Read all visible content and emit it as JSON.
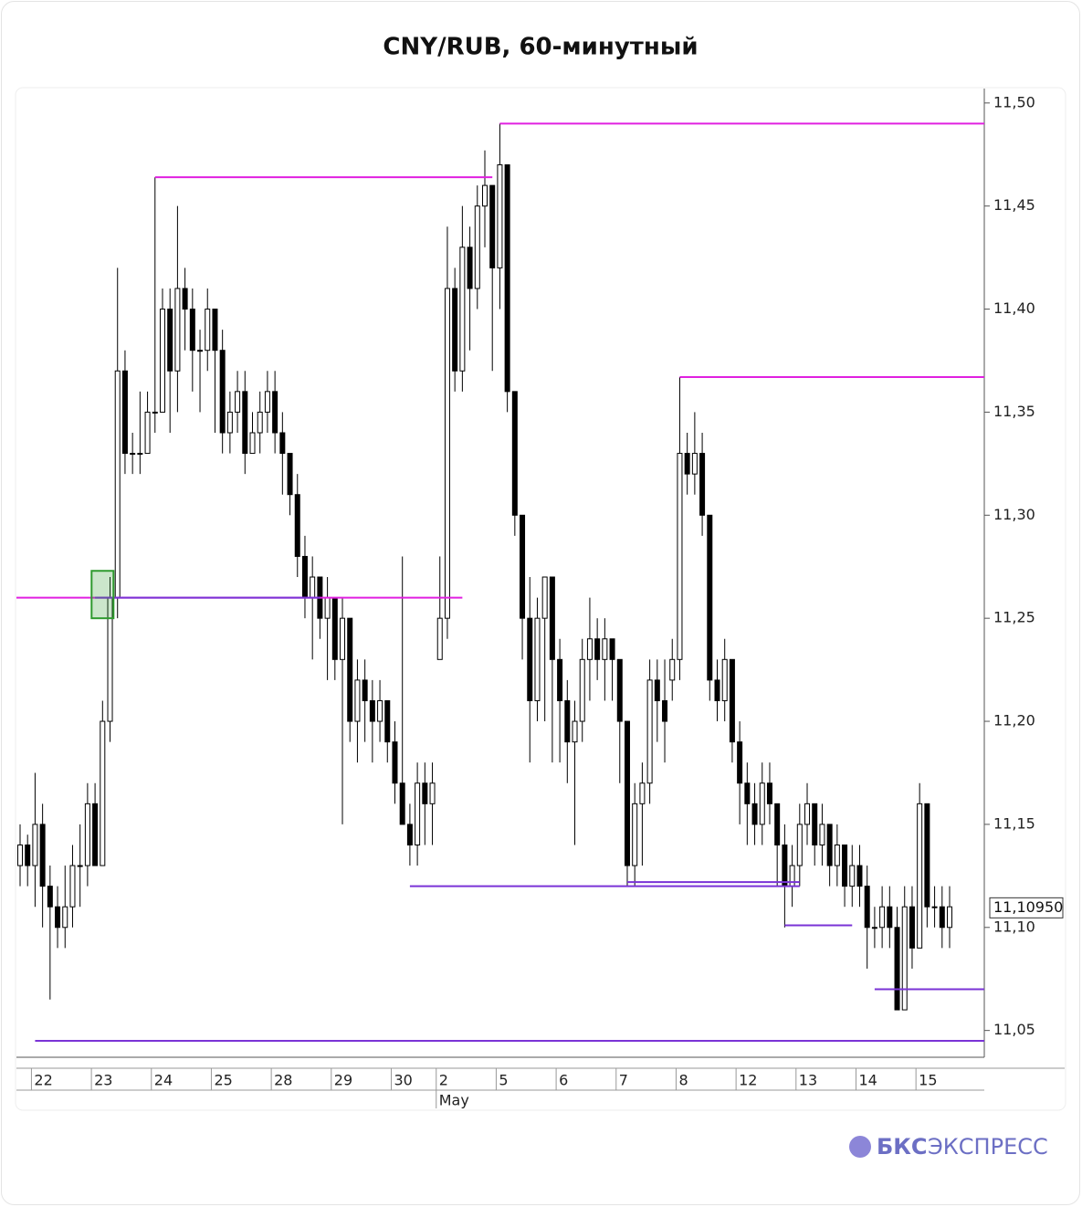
{
  "chart_data": {
    "type": "candlestick",
    "title": "CNY/RUB, 60-минутный",
    "categories": [
      null,
      null,
      "22",
      null,
      null,
      null,
      null,
      null,
      null,
      null,
      "23",
      null,
      null,
      null,
      null,
      null,
      null,
      null,
      "24",
      null,
      null,
      null,
      null,
      null,
      null,
      null,
      "25",
      null,
      null,
      null,
      null,
      null,
      null,
      null,
      "28",
      null,
      null,
      null,
      null,
      null,
      null,
      null,
      "29",
      null,
      null,
      null,
      null,
      null,
      null,
      null,
      "30",
      null,
      null,
      null,
      null,
      null,
      "2",
      null,
      null,
      null,
      null,
      null,
      null,
      null,
      "5",
      null,
      null,
      null,
      null,
      null,
      null,
      null,
      "6",
      null,
      null,
      null,
      null,
      null,
      null,
      null,
      "7",
      null,
      null,
      null,
      null,
      null,
      null,
      null,
      "8",
      null,
      null,
      null,
      null,
      null,
      null,
      null,
      "12",
      null,
      null,
      null,
      null,
      null,
      null,
      null,
      "13",
      null,
      null,
      null,
      null,
      null,
      null,
      null,
      "14",
      null,
      null,
      null,
      null,
      null,
      null,
      null,
      "15",
      null,
      null,
      null,
      null
    ],
    "month_labels": [
      {
        "label": "May",
        "index": 56
      }
    ],
    "ohlc": [
      [
        11.13,
        11.15,
        11.12,
        11.14
      ],
      [
        11.14,
        11.145,
        11.12,
        11.13
      ],
      [
        11.13,
        11.175,
        11.11,
        11.15
      ],
      [
        11.15,
        11.16,
        11.1,
        11.12
      ],
      [
        11.12,
        11.13,
        11.065,
        11.11
      ],
      [
        11.11,
        11.12,
        11.09,
        11.1
      ],
      [
        11.1,
        11.13,
        11.09,
        11.11
      ],
      [
        11.11,
        11.14,
        11.1,
        11.13
      ],
      [
        11.13,
        11.15,
        11.11,
        11.13
      ],
      [
        11.13,
        11.17,
        11.12,
        11.16
      ],
      [
        11.16,
        11.17,
        11.13,
        11.13
      ],
      [
        11.13,
        11.21,
        11.13,
        11.2
      ],
      [
        11.2,
        11.27,
        11.19,
        11.26
      ],
      [
        11.26,
        11.42,
        11.25,
        11.37
      ],
      [
        11.37,
        11.38,
        11.32,
        11.33
      ],
      [
        11.33,
        11.34,
        11.32,
        11.33
      ],
      [
        11.33,
        11.36,
        11.32,
        11.33
      ],
      [
        11.33,
        11.36,
        11.33,
        11.35
      ],
      [
        11.35,
        11.464,
        11.34,
        11.35
      ],
      [
        11.35,
        11.41,
        11.35,
        11.4
      ],
      [
        11.4,
        11.41,
        11.34,
        11.37
      ],
      [
        11.37,
        11.45,
        11.35,
        11.41
      ],
      [
        11.41,
        11.42,
        11.38,
        11.4
      ],
      [
        11.4,
        11.41,
        11.36,
        11.38
      ],
      [
        11.38,
        11.39,
        11.35,
        11.38
      ],
      [
        11.38,
        11.41,
        11.37,
        11.4
      ],
      [
        11.4,
        11.4,
        11.34,
        11.38
      ],
      [
        11.38,
        11.39,
        11.33,
        11.34
      ],
      [
        11.34,
        11.36,
        11.33,
        11.35
      ],
      [
        11.35,
        11.37,
        11.34,
        11.36
      ],
      [
        11.36,
        11.37,
        11.32,
        11.33
      ],
      [
        11.33,
        11.35,
        11.33,
        11.34
      ],
      [
        11.34,
        11.36,
        11.33,
        11.35
      ],
      [
        11.35,
        11.37,
        11.34,
        11.36
      ],
      [
        11.36,
        11.37,
        11.33,
        11.34
      ],
      [
        11.34,
        11.35,
        11.31,
        11.33
      ],
      [
        11.33,
        11.33,
        11.3,
        11.31
      ],
      [
        11.31,
        11.32,
        11.27,
        11.28
      ],
      [
        11.28,
        11.29,
        11.25,
        11.26
      ],
      [
        11.26,
        11.28,
        11.23,
        11.27
      ],
      [
        11.27,
        11.27,
        11.24,
        11.25
      ],
      [
        11.25,
        11.27,
        11.22,
        11.26
      ],
      [
        11.26,
        11.26,
        11.22,
        11.23
      ],
      [
        11.23,
        11.26,
        11.15,
        11.25
      ],
      [
        11.25,
        11.25,
        11.19,
        11.2
      ],
      [
        11.2,
        11.23,
        11.18,
        11.22
      ],
      [
        11.22,
        11.23,
        11.19,
        11.21
      ],
      [
        11.21,
        11.22,
        11.18,
        11.2
      ],
      [
        11.2,
        11.22,
        11.19,
        11.21
      ],
      [
        11.21,
        11.21,
        11.18,
        11.19
      ],
      [
        11.19,
        11.2,
        11.16,
        11.17
      ],
      [
        11.17,
        11.28,
        11.15,
        11.15
      ],
      [
        11.15,
        11.16,
        11.13,
        11.14
      ],
      [
        11.14,
        11.18,
        11.13,
        11.17
      ],
      [
        11.17,
        11.18,
        11.14,
        11.16
      ],
      [
        11.16,
        11.18,
        11.14,
        11.17
      ],
      [
        11.23,
        11.28,
        11.23,
        11.25
      ],
      [
        11.25,
        11.44,
        11.24,
        11.41
      ],
      [
        11.41,
        11.42,
        11.36,
        11.37
      ],
      [
        11.37,
        11.45,
        11.36,
        11.43
      ],
      [
        11.43,
        11.44,
        11.38,
        11.41
      ],
      [
        11.41,
        11.46,
        11.4,
        11.45
      ],
      [
        11.45,
        11.477,
        11.43,
        11.46
      ],
      [
        11.46,
        11.46,
        11.37,
        11.42
      ],
      [
        11.42,
        11.49,
        11.4,
        11.47
      ],
      [
        11.47,
        11.47,
        11.35,
        11.36
      ],
      [
        11.36,
        11.36,
        11.29,
        11.3
      ],
      [
        11.3,
        11.3,
        11.23,
        11.25
      ],
      [
        11.25,
        11.27,
        11.18,
        11.21
      ],
      [
        11.21,
        11.26,
        11.2,
        11.25
      ],
      [
        11.25,
        11.27,
        11.2,
        11.27
      ],
      [
        11.27,
        11.27,
        11.18,
        11.23
      ],
      [
        11.23,
        11.24,
        11.18,
        11.21
      ],
      [
        11.21,
        11.22,
        11.17,
        11.19
      ],
      [
        11.19,
        11.21,
        11.14,
        11.2
      ],
      [
        11.2,
        11.24,
        11.19,
        11.23
      ],
      [
        11.23,
        11.26,
        11.21,
        11.24
      ],
      [
        11.24,
        11.25,
        11.22,
        11.23
      ],
      [
        11.23,
        11.25,
        11.21,
        11.24
      ],
      [
        11.24,
        11.24,
        11.21,
        11.23
      ],
      [
        11.23,
        11.23,
        11.17,
        11.2
      ],
      [
        11.2,
        11.2,
        11.12,
        11.13
      ],
      [
        11.13,
        11.17,
        11.12,
        11.16
      ],
      [
        11.16,
        11.18,
        11.13,
        11.17
      ],
      [
        11.17,
        11.23,
        11.16,
        11.22
      ],
      [
        11.22,
        11.23,
        11.19,
        11.21
      ],
      [
        11.21,
        11.23,
        11.18,
        11.2
      ],
      [
        11.22,
        11.24,
        11.21,
        11.23
      ],
      [
        11.23,
        11.367,
        11.22,
        11.33
      ],
      [
        11.33,
        11.34,
        11.31,
        11.32
      ],
      [
        11.32,
        11.35,
        11.31,
        11.33
      ],
      [
        11.33,
        11.34,
        11.29,
        11.3
      ],
      [
        11.3,
        11.3,
        11.21,
        11.22
      ],
      [
        11.22,
        11.23,
        11.2,
        11.21
      ],
      [
        11.21,
        11.24,
        11.2,
        11.23
      ],
      [
        11.23,
        11.23,
        11.18,
        11.19
      ],
      [
        11.19,
        11.2,
        11.15,
        11.17
      ],
      [
        11.17,
        11.18,
        11.14,
        11.16
      ],
      [
        11.16,
        11.17,
        11.14,
        11.15
      ],
      [
        11.15,
        11.18,
        11.14,
        11.17
      ],
      [
        11.17,
        11.18,
        11.15,
        11.16
      ],
      [
        11.16,
        11.16,
        11.12,
        11.14
      ],
      [
        11.14,
        11.15,
        11.1,
        11.12
      ],
      [
        11.12,
        11.14,
        11.11,
        11.13
      ],
      [
        11.13,
        11.16,
        11.12,
        11.15
      ],
      [
        11.15,
        11.17,
        11.14,
        11.16
      ],
      [
        11.16,
        11.16,
        11.13,
        11.14
      ],
      [
        11.14,
        11.16,
        11.13,
        11.15
      ],
      [
        11.15,
        11.15,
        11.12,
        11.13
      ],
      [
        11.13,
        11.15,
        11.12,
        11.14
      ],
      [
        11.14,
        11.14,
        11.11,
        11.12
      ],
      [
        11.12,
        11.14,
        11.11,
        11.13
      ],
      [
        11.13,
        11.14,
        11.11,
        11.12
      ],
      [
        11.12,
        11.13,
        11.08,
        11.1
      ],
      [
        11.1,
        11.11,
        11.09,
        11.1
      ],
      [
        11.1,
        11.12,
        11.09,
        11.11
      ],
      [
        11.11,
        11.12,
        11.09,
        11.1
      ],
      [
        11.1,
        11.11,
        11.06,
        11.06
      ],
      [
        11.06,
        11.12,
        11.06,
        11.11
      ],
      [
        11.11,
        11.12,
        11.08,
        11.09
      ],
      [
        11.09,
        11.17,
        11.09,
        11.16
      ],
      [
        11.16,
        11.16,
        11.1,
        11.11
      ],
      [
        11.11,
        11.12,
        11.1,
        11.11
      ],
      [
        11.11,
        11.12,
        11.09,
        11.1
      ],
      [
        11.1,
        11.12,
        11.09,
        11.11
      ]
    ],
    "up_color": "#ffffff",
    "down_color": "#000000",
    "levels": [
      {
        "value": 11.464,
        "color": "#e020e0",
        "from": 18,
        "to": 63
      },
      {
        "value": 11.49,
        "color": "#e020e0",
        "from": 64
      },
      {
        "value": 11.367,
        "color": "#e020e0",
        "from": 88
      },
      {
        "value": 11.26,
        "color": "#e020e0",
        "to": 59
      },
      {
        "value": 11.26,
        "color": "#7a33d6",
        "from": 10,
        "to": 40
      },
      {
        "value": 11.12,
        "color": "#7a33d6",
        "from": 52,
        "to": 104
      },
      {
        "value": 11.122,
        "color": "#7a33d6",
        "from": 81,
        "to": 104
      },
      {
        "value": 11.101,
        "color": "#7a33d6",
        "from": 102,
        "to": 111
      },
      {
        "value": 11.07,
        "color": "#7a33d6",
        "from": 114
      },
      {
        "value": 11.045,
        "color": "#7a33d6",
        "from": 2
      }
    ],
    "highlight": {
      "index": 11,
      "low": 11.25,
      "high": 11.273,
      "color": "#2e9a2e"
    },
    "last_price": {
      "value": 11.1095,
      "label": "11,10950"
    },
    "ylim": [
      11.037,
      11.507
    ],
    "yticks": [
      {
        "value": 11.05,
        "label": "11,05"
      },
      {
        "value": 11.1,
        "label": "11,10"
      },
      {
        "value": 11.15,
        "label": "11,15"
      },
      {
        "value": 11.2,
        "label": "11,20"
      },
      {
        "value": 11.25,
        "label": "11,25"
      },
      {
        "value": 11.3,
        "label": "11,30"
      },
      {
        "value": 11.35,
        "label": "11,35"
      },
      {
        "value": 11.4,
        "label": "11,40"
      },
      {
        "value": 11.45,
        "label": "11,45"
      },
      {
        "value": 11.5,
        "label": "11,50"
      }
    ]
  },
  "footer": {
    "brand": "БКС",
    "brand_rest": "ЭКСПРЕСС"
  }
}
